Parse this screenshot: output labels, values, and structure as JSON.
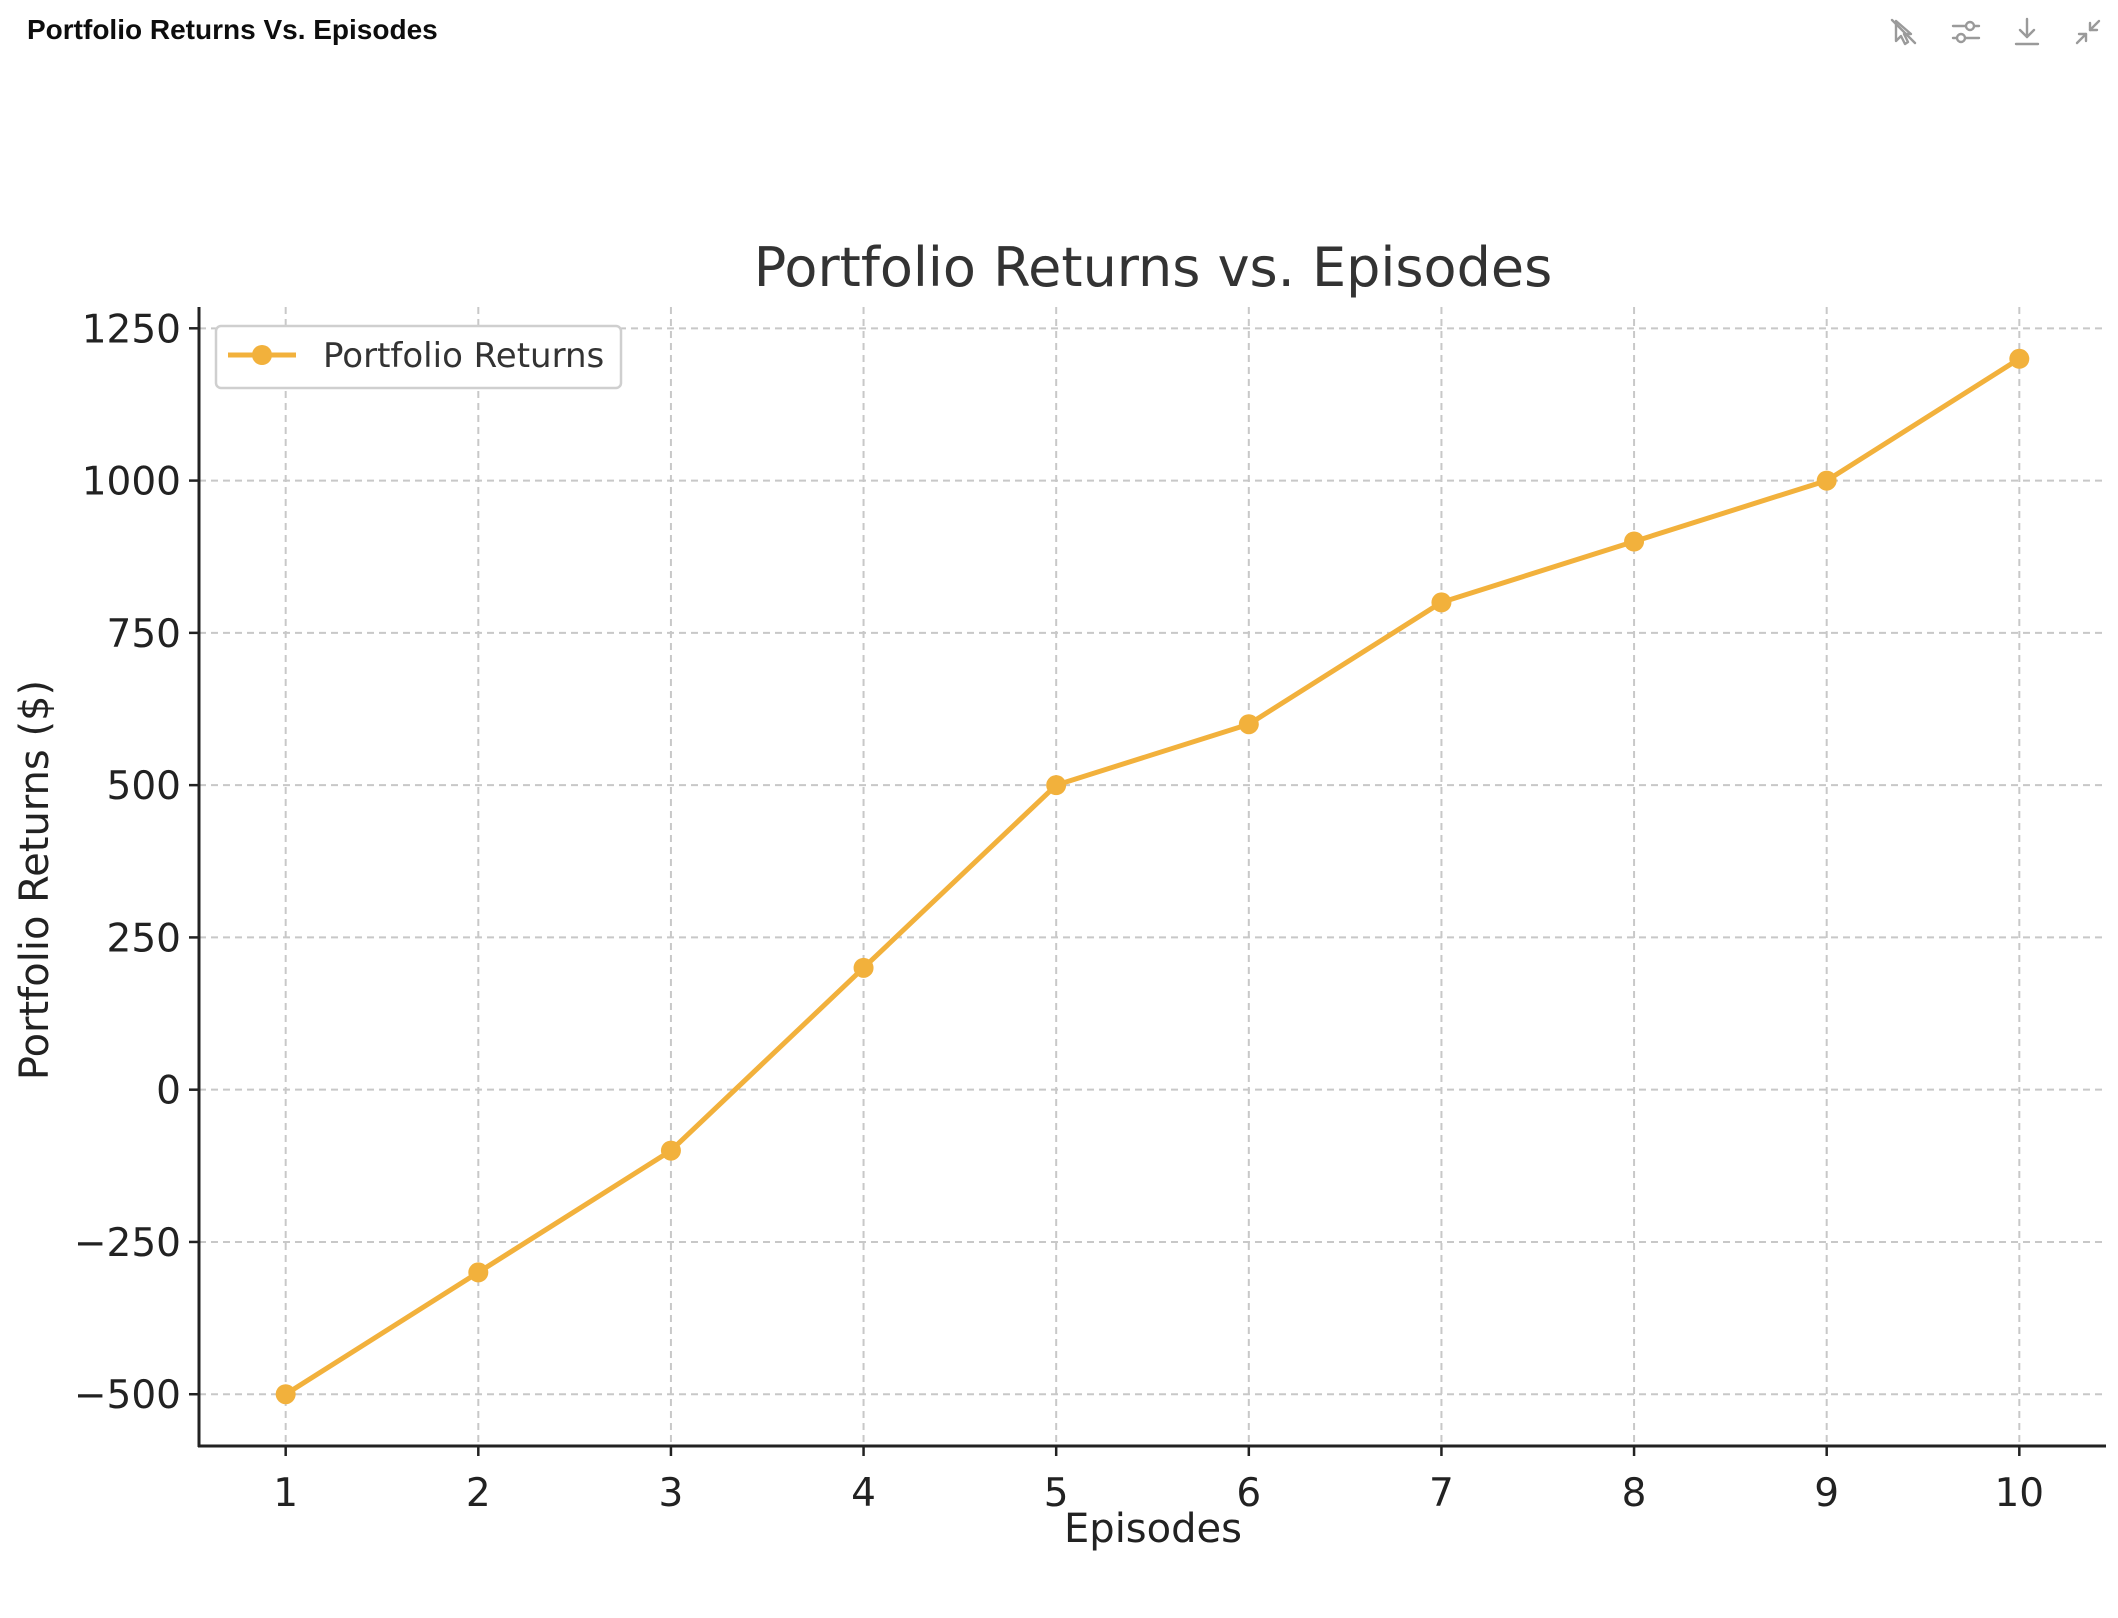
{
  "header": {
    "title": "Portfolio Returns Vs. Episodes"
  },
  "toolbar": {
    "items": [
      {
        "icon": "cursor-off-icon"
      },
      {
        "icon": "sliders-icon"
      },
      {
        "icon": "download-icon"
      },
      {
        "icon": "collapse-icon"
      }
    ]
  },
  "colors": {
    "series": "#f2b13c",
    "grid": "#c8c8c8",
    "axis": "#222222",
    "toolbar_icon": "#9a9a9a"
  },
  "chart_data": {
    "type": "line",
    "title": "Portfolio Returns vs. Episodes",
    "xlabel": "Episodes",
    "ylabel": "Portfolio Returns ($)",
    "x": [
      1,
      2,
      3,
      4,
      5,
      6,
      7,
      8,
      9,
      10
    ],
    "x_ticks": [
      "1",
      "2",
      "3",
      "4",
      "5",
      "6",
      "7",
      "8",
      "9",
      "10"
    ],
    "y_ticks": [
      -500,
      -250,
      0,
      250,
      500,
      750,
      1000,
      1250
    ],
    "y_tick_labels": [
      "−500",
      "−250",
      "0",
      "250",
      "500",
      "750",
      "1000",
      "1250"
    ],
    "xlim": [
      0.55,
      10.45
    ],
    "ylim": [
      -585,
      1285
    ],
    "grid": true,
    "grid_style": "dashed",
    "legend_position": "top-left",
    "series": [
      {
        "name": "Portfolio Returns",
        "marker": "circle",
        "values": [
          -500,
          -300,
          -100,
          200,
          500,
          600,
          800,
          900,
          1000,
          1200
        ]
      }
    ]
  }
}
